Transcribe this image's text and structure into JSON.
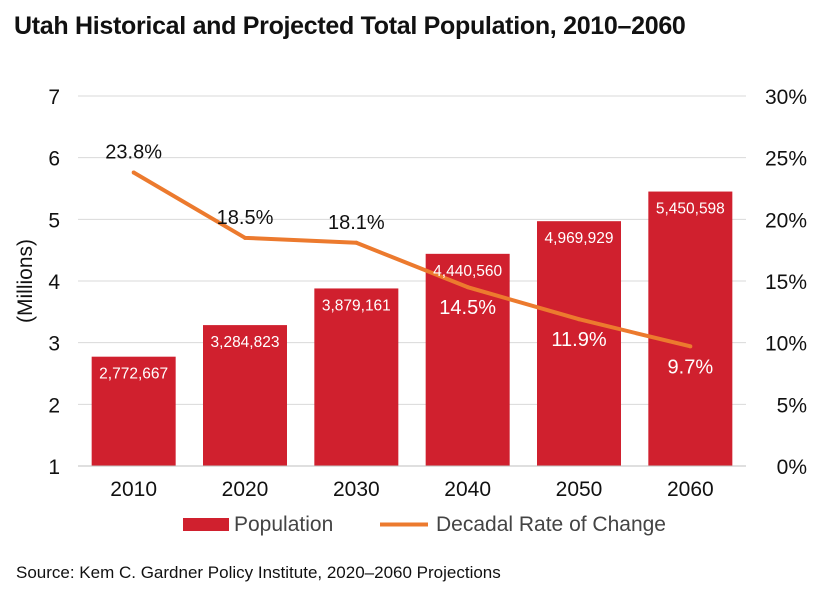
{
  "page": {
    "title": "Utah Historical and Projected Total Population, 2010–2060",
    "source": "Source: Kem C. Gardner Policy Institute, 2020–2060 Projections"
  },
  "chart_data": {
    "type": "bar",
    "categories": [
      "2010",
      "2020",
      "2030",
      "2040",
      "2050",
      "2060"
    ],
    "series": [
      {
        "name": "Population",
        "type": "bar",
        "axis": "left",
        "color": "#d0202e",
        "values": [
          2772667,
          3284823,
          3879161,
          4440560,
          4969929,
          5450598
        ],
        "labels": [
          "2,772,667",
          "3,284,823",
          "3,879,161",
          "4,440,560",
          "4,969,929",
          "5,450,598"
        ]
      },
      {
        "name": "Decadal Rate of Change",
        "type": "line",
        "axis": "right",
        "color": "#ec7a2e",
        "values": [
          23.8,
          18.5,
          18.1,
          14.5,
          11.9,
          9.7
        ],
        "labels": [
          "23.8%",
          "18.5%",
          "18.1%",
          "14.5%",
          "11.9%",
          "9.7%"
        ]
      }
    ],
    "ylabel": "(Millions)",
    "ylim": [
      1,
      7
    ],
    "y_ticks": [
      "1",
      "2",
      "3",
      "4",
      "5",
      "6",
      "7"
    ],
    "y2lim": [
      0,
      30
    ],
    "y2_ticks": [
      "0%",
      "5%",
      "10%",
      "15%",
      "20%",
      "25%",
      "30%"
    ],
    "grid": true,
    "legend": "bottom-center"
  }
}
